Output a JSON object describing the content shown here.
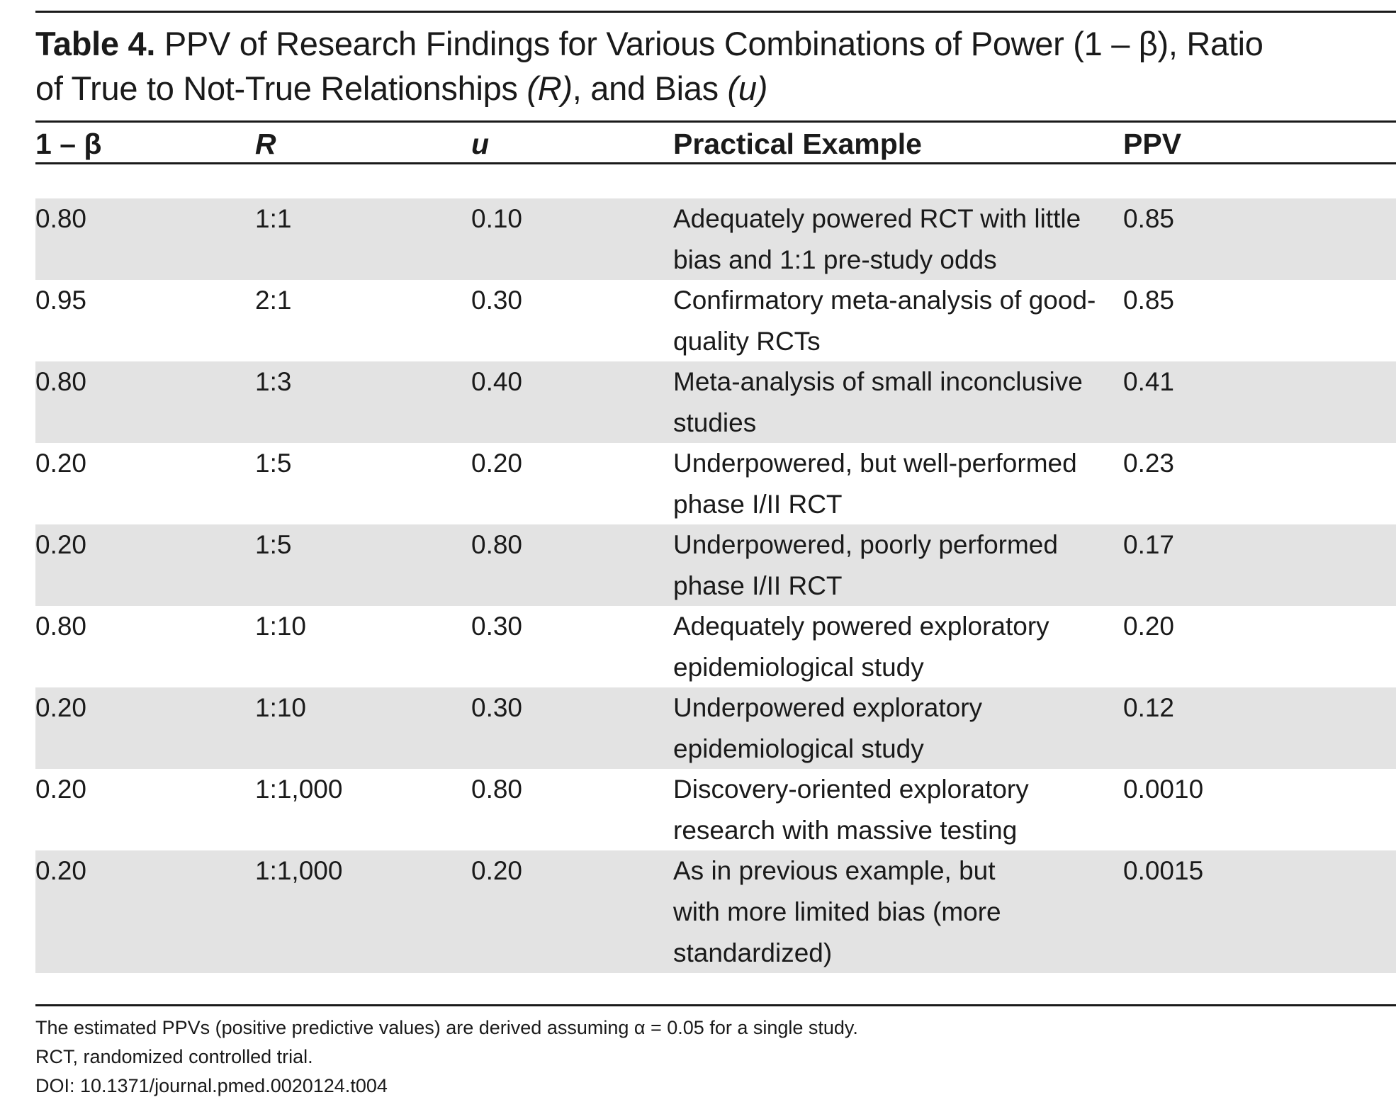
{
  "title": {
    "label": "Table 4.",
    "line1": " PPV of Research Findings for Various Combinations of Power (1 – β), Ratio",
    "line2_prefix": "of True to Not-True Relationships ",
    "line2_R": "(R)",
    "line2_mid": ", and Bias ",
    "line2_u": "(u)"
  },
  "columns": {
    "power": "1 – β",
    "ratio": "R",
    "bias": "u",
    "example": "Practical Example",
    "ppv": "PPV"
  },
  "rows": [
    {
      "power": "0.80",
      "ratio": "1:1",
      "bias": "0.10",
      "example": [
        "Adequately powered RCT with little",
        "bias and 1:1 pre-study odds"
      ],
      "ppv": "0.85"
    },
    {
      "power": "0.95",
      "ratio": "2:1",
      "bias": "0.30",
      "example": [
        "Confirmatory meta-analysis of good-",
        "quality RCTs"
      ],
      "ppv": "0.85"
    },
    {
      "power": "0.80",
      "ratio": "1:3",
      "bias": "0.40",
      "example": [
        "Meta-analysis of small inconclusive",
        "studies"
      ],
      "ppv": "0.41"
    },
    {
      "power": "0.20",
      "ratio": "1:5",
      "bias": "0.20",
      "example": [
        "Underpowered, but well-performed",
        "phase I/II  RCT"
      ],
      "ppv": "0.23"
    },
    {
      "power": "0.20",
      "ratio": "1:5",
      "bias": "0.80",
      "example": [
        "Underpowered, poorly performed",
        "phase I/II RCT"
      ],
      "ppv": "0.17"
    },
    {
      "power": "0.80",
      "ratio": "1:10",
      "bias": "0.30",
      "example": [
        "Adequately powered exploratory",
        "epidemiological study"
      ],
      "ppv": "0.20"
    },
    {
      "power": "0.20",
      "ratio": "1:10",
      "bias": "0.30",
      "example": [
        "Underpowered exploratory",
        "epidemiological study"
      ],
      "ppv": "0.12"
    },
    {
      "power": "0.20",
      "ratio": "1:1,000",
      "bias": "0.80",
      "example": [
        "Discovery-oriented exploratory",
        "research with massive testing"
      ],
      "ppv": "0.0010"
    },
    {
      "power": "0.20",
      "ratio": "1:1,000",
      "bias": "0.20",
      "example": [
        "As in previous example, but",
        "with more limited bias (more",
        "standardized)"
      ],
      "ppv": "0.0015"
    }
  ],
  "footnotes": [
    "The estimated PPVs (positive predictive values) are derived assuming α = 0.05 for a single study.",
    "RCT, randomized controlled trial.",
    "DOI: 10.1371/journal.pmed.0020124.t004"
  ],
  "colors": {
    "row_shade": "#e3e3e3",
    "text": "#1a1a1a"
  }
}
